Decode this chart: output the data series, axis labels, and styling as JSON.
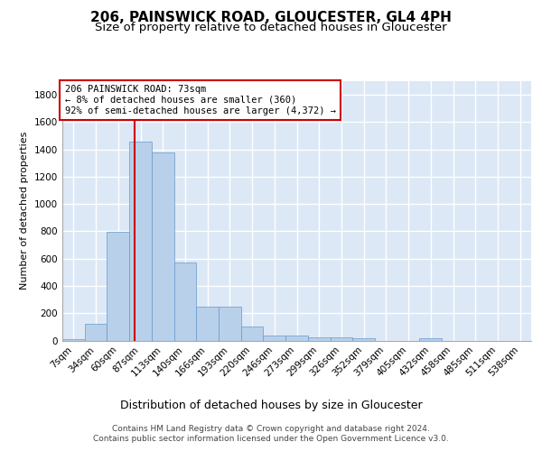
{
  "title": "206, PAINSWICK ROAD, GLOUCESTER, GL4 4PH",
  "subtitle": "Size of property relative to detached houses in Gloucester",
  "xlabel": "Distribution of detached houses by size in Gloucester",
  "ylabel": "Number of detached properties",
  "categories": [
    "7sqm",
    "34sqm",
    "60sqm",
    "87sqm",
    "113sqm",
    "140sqm",
    "166sqm",
    "193sqm",
    "220sqm",
    "246sqm",
    "273sqm",
    "299sqm",
    "326sqm",
    "352sqm",
    "379sqm",
    "405sqm",
    "432sqm",
    "458sqm",
    "485sqm",
    "511sqm",
    "538sqm"
  ],
  "values": [
    10,
    125,
    795,
    1460,
    1380,
    570,
    250,
    250,
    105,
    35,
    35,
    25,
    25,
    15,
    0,
    0,
    15,
    0,
    0,
    0,
    0
  ],
  "bar_color": "#b8d0ea",
  "bar_edgecolor": "#6699cc",
  "bar_linewidth": 0.5,
  "vline_x": 2.73,
  "vline_color": "#cc0000",
  "vline_lw": 1.5,
  "ylim": [
    0,
    1900
  ],
  "yticks": [
    0,
    200,
    400,
    600,
    800,
    1000,
    1200,
    1400,
    1600,
    1800
  ],
  "annotation_text": "206 PAINSWICK ROAD: 73sqm\n← 8% of detached houses are smaller (360)\n92% of semi-detached houses are larger (4,372) →",
  "annotation_fontsize": 7.5,
  "annotation_box_color": "#ffffff",
  "annotation_edge_color": "#cc0000",
  "title_fontsize": 11,
  "subtitle_fontsize": 9.5,
  "xlabel_fontsize": 9,
  "ylabel_fontsize": 8,
  "tick_fontsize": 7.5,
  "footer_line1": "Contains HM Land Registry data © Crown copyright and database right 2024.",
  "footer_line2": "Contains public sector information licensed under the Open Government Licence v3.0.",
  "footer_fontsize": 6.5,
  "plot_bg_color": "#dce8f5",
  "grid_color": "#ffffff",
  "fig_bg_color": "#ffffff"
}
